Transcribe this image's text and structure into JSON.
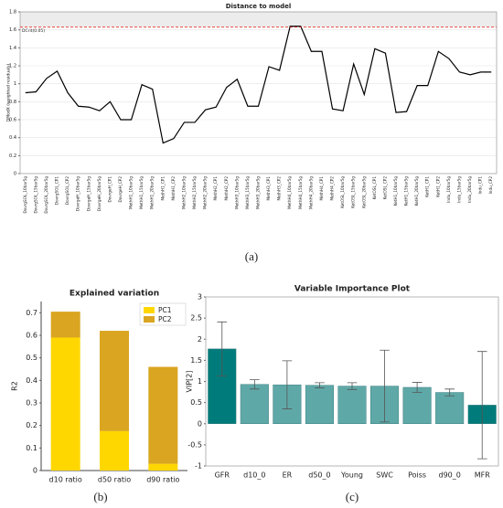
{
  "chart_data": [
    {
      "type": "line",
      "title": "Distance to model",
      "y_label": "DModX (weighted residuals)",
      "caption": "(a)",
      "categories": [
        "DovrgSOL_10bar5g",
        "DovrgSOL_15bar5g",
        "DovrgSOL_20bar5g",
        "DovrgSOL_CP1",
        "DovrgSOL_CP2",
        "DovrgeH_10bar5g",
        "DovrgeH_15bar5g",
        "DovrgeH_20bar5g",
        "DovrgeH_CP1",
        "DovrgeH_CP2",
        "MethH1_10bar5g",
        "MethH1_15bar5g",
        "MethH1_20bar5g",
        "MethH1_CP1",
        "MethH1_CP2",
        "MethH2_10bar5g",
        "MethH2_15bar5g",
        "MethH2_20bar5g",
        "MethH2_CP1",
        "MethH2_CP2",
        "MethH3_10bar5g",
        "MethH3_15bar5g",
        "MethH3_20bar5g",
        "MethH3_CP1",
        "MethH3_CP2",
        "MethH4_10bar5g",
        "MethH4_15bar5g",
        "MethH4_20bar5g",
        "MethH4_CP1",
        "MethH4_CP2",
        "KetOSL_10bar5g",
        "KetOSL_15bar5g",
        "KetOSL_20bar5g",
        "KetOSL_CP1",
        "KetOSL_CP2",
        "KetH1_10bar5g",
        "KetH1_15bar5g",
        "KetH1_20bar5g",
        "KetH1_CP1",
        "KetH1_CP2",
        "Indu_10bar5g",
        "Indu_15bar5g",
        "Indu_20bar5g",
        "Indu_CP1",
        "Indu_CP2"
      ],
      "values": [
        0.9,
        0.91,
        1.06,
        1.14,
        0.9,
        0.75,
        0.74,
        0.7,
        0.8,
        0.6,
        0.6,
        0.99,
        0.94,
        0.34,
        0.39,
        0.57,
        0.57,
        0.71,
        0.74,
        0.96,
        1.05,
        0.75,
        0.75,
        1.19,
        1.15,
        1.64,
        1.64,
        1.36,
        1.36,
        0.72,
        0.7,
        1.22,
        0.88,
        1.39,
        1.34,
        0.68,
        0.69,
        0.98,
        0.98,
        1.36,
        1.28,
        1.13,
        1.1,
        1.13,
        1.13
      ],
      "color": "#000000",
      "critical_value": 1.63,
      "critical_label": "DCrit(0.05)",
      "critical_color": "#e8322a",
      "ylim": [
        0,
        1.8
      ],
      "yticks": [
        0,
        0.2,
        0.4,
        0.6,
        0.8,
        1,
        1.2,
        1.4,
        1.6,
        1.8
      ],
      "grid": true
    },
    {
      "type": "stacked_bar",
      "title": "Explained variation",
      "y_label": "R2",
      "caption": "(b)",
      "categories": [
        "d10 ratio",
        "d50 ratio",
        "d90 ratio"
      ],
      "series": [
        {
          "name": "PC1",
          "color": "#ffd700",
          "values": [
            0.59,
            0.175,
            0.03
          ]
        },
        {
          "name": "PC2",
          "color": "#daa520",
          "values": [
            0.115,
            0.445,
            0.43
          ]
        }
      ],
      "ylim": [
        0,
        0.75
      ],
      "yticks": [
        0,
        0.1,
        0.2,
        0.3,
        0.4,
        0.5,
        0.6,
        0.7
      ],
      "grid": false,
      "legend": "top-right"
    },
    {
      "type": "bar",
      "title": "Variable Importance Plot",
      "y_label": "VIP[2]",
      "caption": "(c)",
      "categories": [
        "GFR",
        "d10_0",
        "ER",
        "d50_0",
        "Young",
        "SWC",
        "Poiss",
        "d90_0",
        "MFR"
      ],
      "values": [
        1.77,
        0.93,
        0.92,
        0.91,
        0.89,
        0.89,
        0.86,
        0.74,
        0.44
      ],
      "errors": [
        0.64,
        0.11,
        0.57,
        0.06,
        0.08,
        0.85,
        0.12,
        0.08,
        1.27
      ],
      "colors": [
        "#007b7b",
        "#5fa8a8",
        "#5fa8a8",
        "#5fa8a8",
        "#5fa8a8",
        "#5fa8a8",
        "#5fa8a8",
        "#5fa8a8",
        "#007b7b"
      ],
      "ylim": [
        -1,
        3
      ],
      "yticks": [
        -1,
        -0.5,
        0,
        0.5,
        1,
        1.5,
        2,
        2.5,
        3
      ],
      "grid": false
    }
  ]
}
